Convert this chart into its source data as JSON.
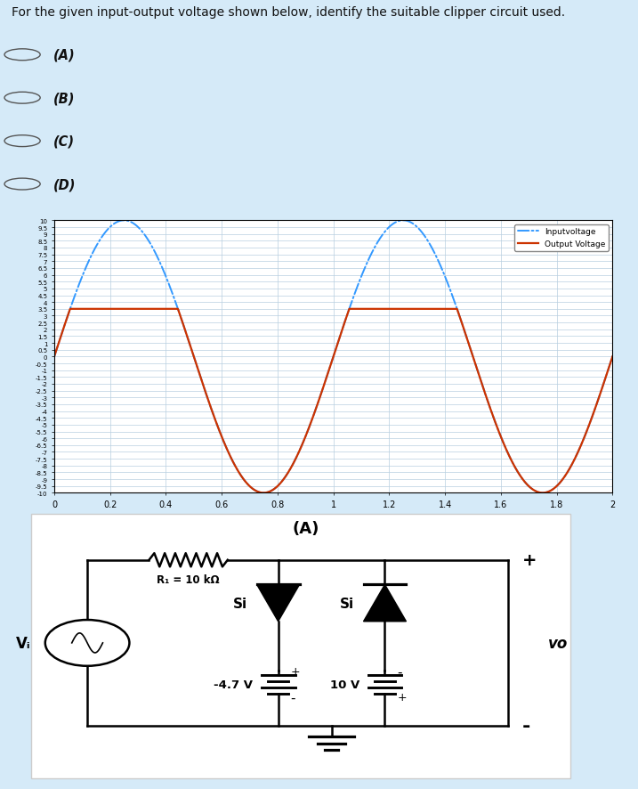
{
  "title": "For the given input-output voltage shown below, identify the suitable clipper circuit used.",
  "options": [
    "(A)",
    "(B)",
    "(C)",
    "(D)"
  ],
  "bg_color": "#d5eaf8",
  "white_bg": "#ffffff",
  "plot_clip_upper": 3.5,
  "plot_amplitude": 10,
  "plot_tmax": 2,
  "input_color": "#3399ff",
  "output_color": "#cc3300",
  "input_label": "Inputvoltage",
  "output_label": "Output Voltage",
  "circuit_label": "(A)",
  "R1_label": "R₁ = 10 kΩ",
  "V1_label": "-4.7 V",
  "V2_label": "10 V",
  "Si_label": "Si",
  "Vi_label": "Vᵢ",
  "Vo_label": "vo"
}
